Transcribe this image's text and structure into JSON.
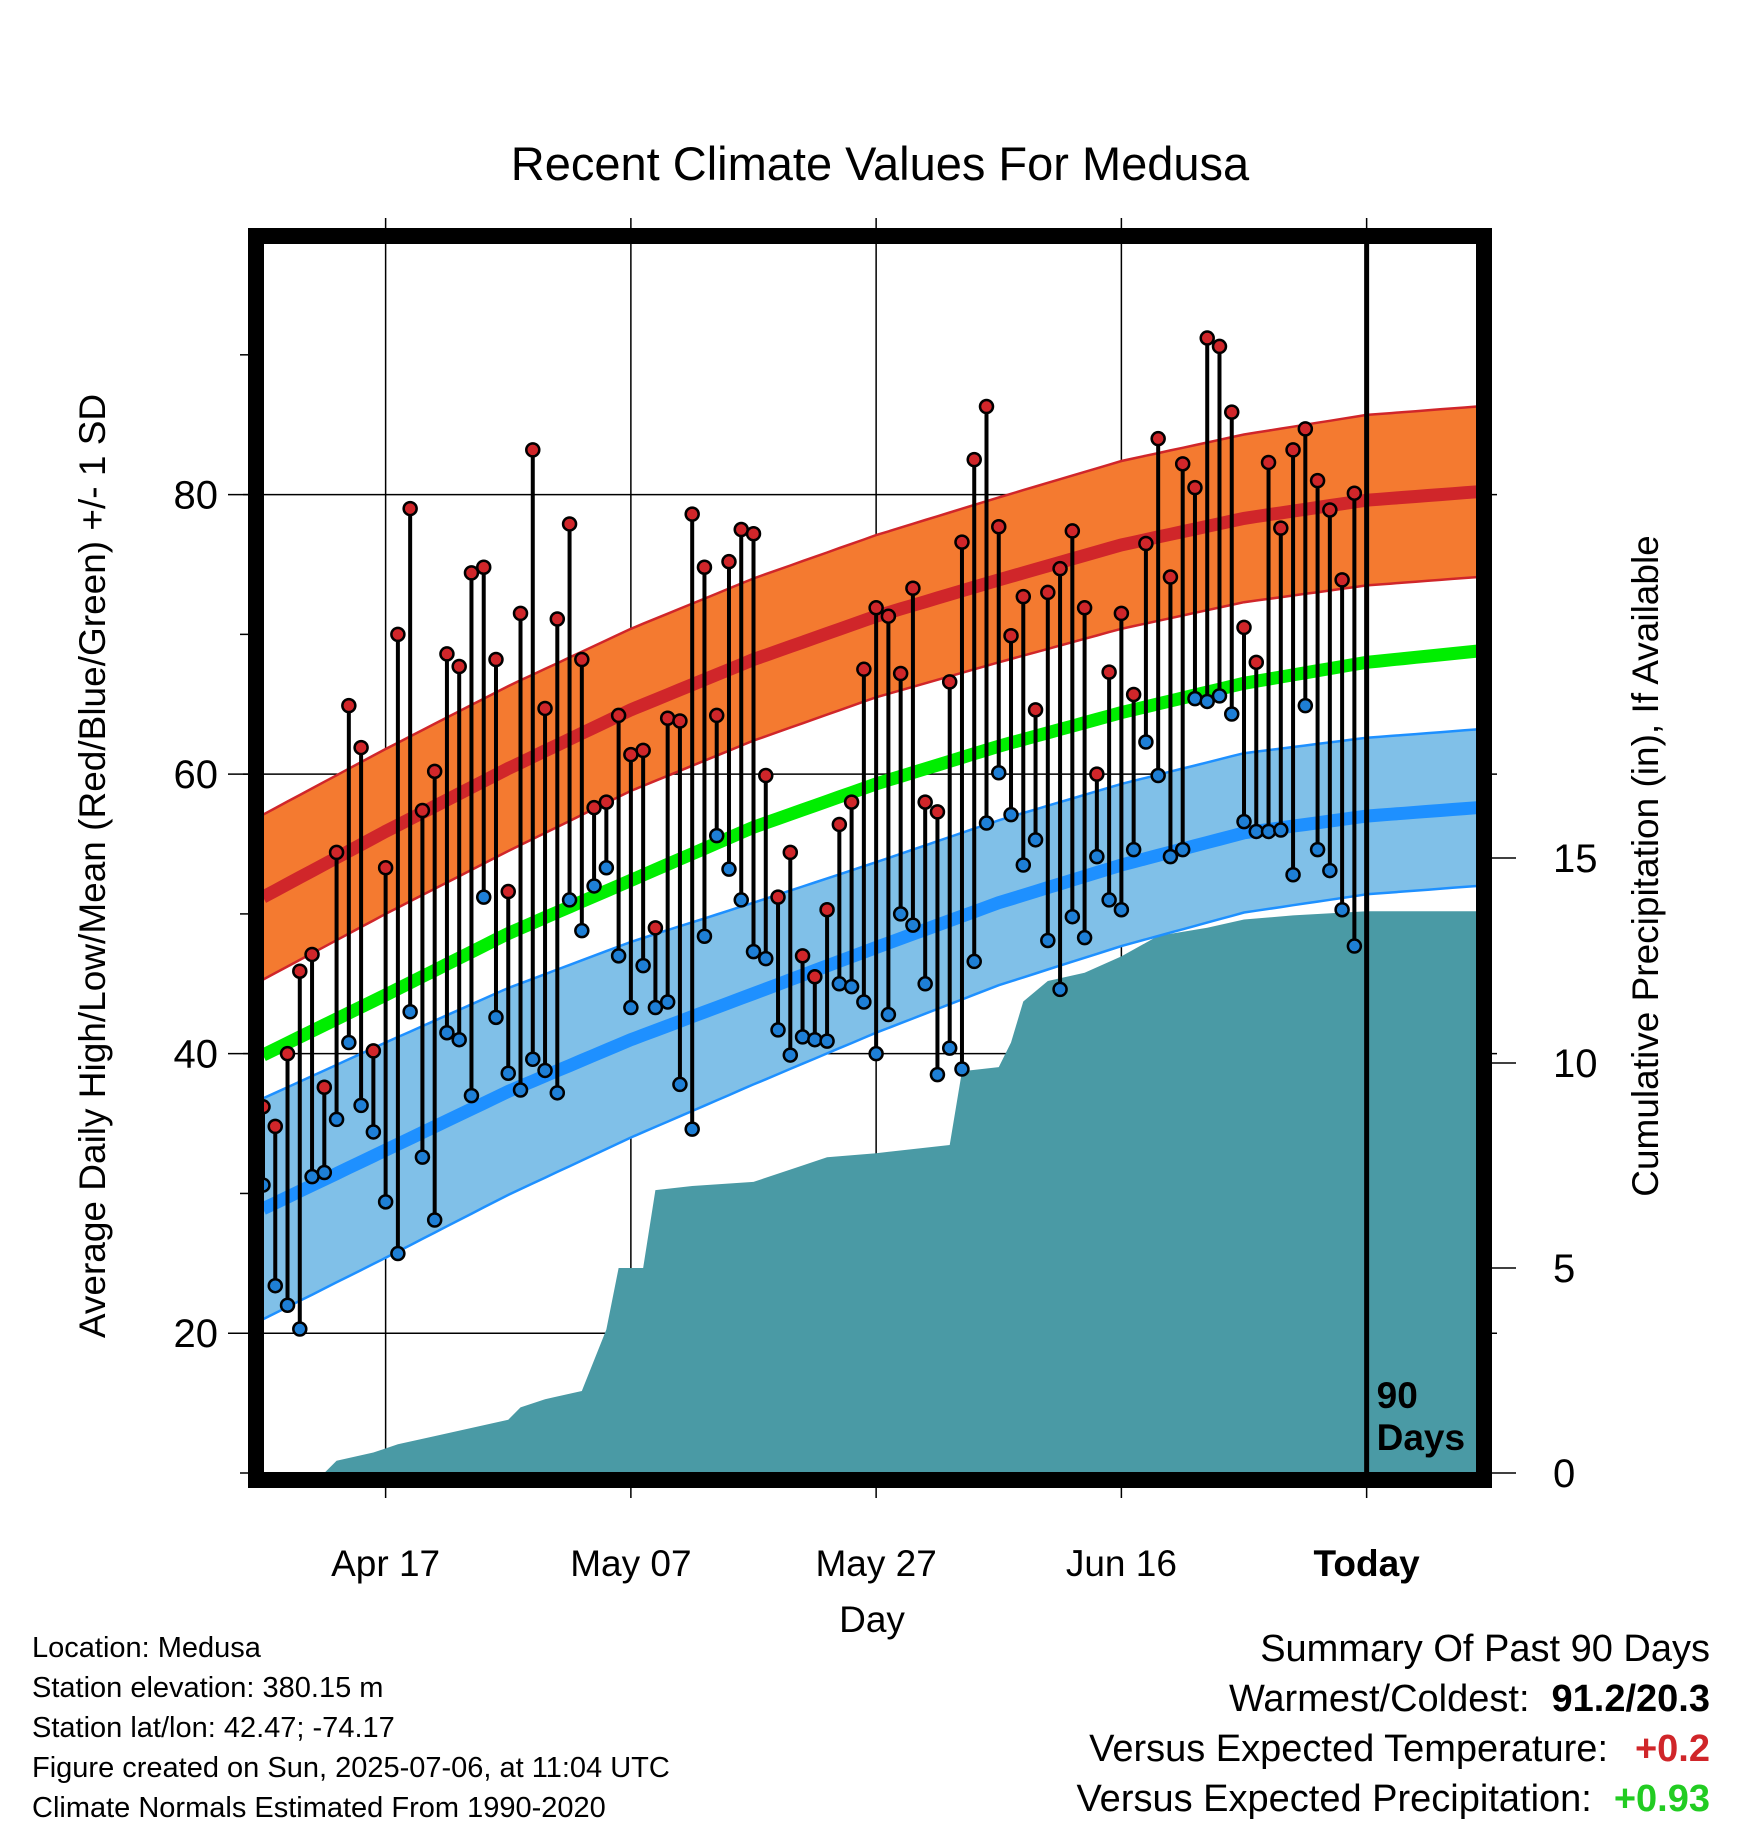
{
  "chart_data": {
    "type": "line",
    "title": "Recent Climate Values For Medusa",
    "xlabel": "Day",
    "ylabel": "Average Daily High/Low/Mean (Red/Blue/Green) +/- 1 SD",
    "y2label": "Cumulative Precipitation (in), If Available",
    "x_start": "2025-04-07",
    "x_end": "2025-07-15",
    "today": "2025-07-06",
    "xticks": [
      {
        "date": "2025-04-17",
        "label": "Apr 17"
      },
      {
        "date": "2025-05-07",
        "label": "May 07"
      },
      {
        "date": "2025-05-27",
        "label": "May 27"
      },
      {
        "date": "2025-06-16",
        "label": "Jun 16"
      },
      {
        "date": "2025-07-06",
        "label": "Today"
      }
    ],
    "ylim": [
      10,
      98
    ],
    "yticks": [
      20,
      40,
      60,
      80
    ],
    "y2lim": [
      0,
      30
    ],
    "y2ticks": [
      0,
      5,
      10,
      15
    ],
    "today_label": [
      "90",
      "Days"
    ],
    "grid": true,
    "normals": {
      "dates": [
        "2025-04-07",
        "2025-04-17",
        "2025-04-27",
        "2025-05-07",
        "2025-05-17",
        "2025-05-27",
        "2025-06-06",
        "2025-06-16",
        "2025-06-26",
        "2025-07-06",
        "2025-07-15"
      ],
      "high_mean": [
        51.2,
        55.9,
        60.4,
        64.6,
        68.2,
        71.3,
        73.9,
        76.4,
        78.3,
        79.6,
        80.2
      ],
      "high_sd": [
        5.9,
        5.9,
        5.9,
        5.8,
        5.8,
        5.8,
        5.9,
        6.0,
        6.0,
        6.1,
        6.1
      ],
      "mean": [
        39.9,
        44.2,
        48.6,
        52.4,
        56.2,
        59.3,
        62.0,
        64.4,
        66.5,
        68.0,
        68.8
      ],
      "low_mean": [
        28.9,
        33.1,
        37.3,
        41.0,
        44.3,
        47.6,
        50.8,
        53.5,
        55.8,
        57.0,
        57.6
      ],
      "low_sd": [
        7.9,
        7.7,
        7.4,
        7.0,
        6.5,
        6.1,
        5.9,
        5.8,
        5.7,
        5.6,
        5.6
      ]
    },
    "observed": {
      "start_date": "2025-04-07",
      "high": [
        36.2,
        34.8,
        40.0,
        45.9,
        47.1,
        37.6,
        54.4,
        64.9,
        61.9,
        40.2,
        53.3,
        70.0,
        79.0,
        57.4,
        60.2,
        68.6,
        67.7,
        74.4,
        74.8,
        68.2,
        51.6,
        71.5,
        83.2,
        64.7,
        71.1,
        77.9,
        68.2,
        57.6,
        58.0,
        64.2,
        61.4,
        61.7,
        49.0,
        64.0,
        63.8,
        78.6,
        74.8,
        64.2,
        75.2,
        77.5,
        77.2,
        59.9,
        51.2,
        54.4,
        47.0,
        45.5,
        50.3,
        56.4,
        58.0,
        67.5,
        71.9,
        71.3,
        67.2,
        73.3,
        58.0,
        57.3,
        66.6,
        76.6,
        82.5,
        86.3,
        77.7,
        69.9,
        72.7,
        64.6,
        73.0,
        74.7,
        77.4,
        71.9,
        60.0,
        67.3,
        71.5,
        65.7,
        76.5,
        84.0,
        74.1,
        82.2,
        80.5,
        91.2,
        90.6,
        85.9,
        70.5,
        68.0,
        82.3,
        77.6,
        83.2,
        84.7,
        81.0,
        78.9,
        73.9,
        80.1
      ],
      "low": [
        30.6,
        23.4,
        22.0,
        20.3,
        31.2,
        31.5,
        35.3,
        40.8,
        36.3,
        34.4,
        29.4,
        25.7,
        43.0,
        32.6,
        28.1,
        41.5,
        41.0,
        37.0,
        51.2,
        42.6,
        38.6,
        37.4,
        39.6,
        38.8,
        37.2,
        51.0,
        48.8,
        52.0,
        53.3,
        47.0,
        43.3,
        46.3,
        43.3,
        43.7,
        37.8,
        34.6,
        48.4,
        55.6,
        53.2,
        51.0,
        47.3,
        46.8,
        41.7,
        39.9,
        41.2,
        41.0,
        40.9,
        45.0,
        44.8,
        43.7,
        40.0,
        42.8,
        50.0,
        49.2,
        45.0,
        38.5,
        40.4,
        38.9,
        46.6,
        56.5,
        60.1,
        57.1,
        53.5,
        55.3,
        48.1,
        44.6,
        49.8,
        48.3,
        54.1,
        51.0,
        50.3,
        54.6,
        62.3,
        59.9,
        54.1,
        54.6,
        65.4,
        65.2,
        65.6,
        64.3,
        56.6,
        55.9,
        55.9,
        56.0,
        52.8,
        64.9,
        54.6,
        53.1,
        50.3,
        47.7
      ]
    },
    "precip": {
      "dates": [
        "2025-04-07",
        "2025-04-12",
        "2025-04-13",
        "2025-04-16",
        "2025-04-18",
        "2025-04-21",
        "2025-04-27",
        "2025-04-28",
        "2025-04-30",
        "2025-05-03",
        "2025-05-05",
        "2025-05-06",
        "2025-05-08",
        "2025-05-09",
        "2025-05-12",
        "2025-05-17",
        "2025-05-21",
        "2025-05-23",
        "2025-05-27",
        "2025-06-02",
        "2025-06-03",
        "2025-06-06",
        "2025-06-07",
        "2025-06-08",
        "2025-06-10",
        "2025-06-13",
        "2025-06-16",
        "2025-06-19",
        "2025-06-23",
        "2025-06-26",
        "2025-06-30",
        "2025-07-06",
        "2025-07-15"
      ],
      "values": [
        0.0,
        0.0,
        0.3,
        0.5,
        0.7,
        0.9,
        1.3,
        1.6,
        1.8,
        2.0,
        3.5,
        5.0,
        5.0,
        6.9,
        7.0,
        7.1,
        7.5,
        7.7,
        7.8,
        8.0,
        9.8,
        9.9,
        10.5,
        11.5,
        12.0,
        12.2,
        12.6,
        13.1,
        13.3,
        13.5,
        13.6,
        13.7,
        13.7
      ]
    },
    "colors": {
      "high_band": "#f47a30",
      "high_line": "#d0262a",
      "mean_line": "#00ee00",
      "low_band": "#80c0e8",
      "low_line": "#1e90ff",
      "precip": "#4a9aa5",
      "high_dot": "#d0262a",
      "low_dot": "#1e7fd6"
    }
  },
  "info": {
    "location": "Location: Medusa",
    "elevation": "Station elevation: 380.15 m",
    "latlon": "Station lat/lon: 42.47; -74.17",
    "created": "Figure created on Sun, 2025-07-06, at 11:04 UTC",
    "normals": "Climate Normals Estimated From 1990-2020"
  },
  "summary": {
    "title": "Summary Of Past 90 Days",
    "warmest_label": "Warmest/Coldest:",
    "warmest_value": "91.2/20.3",
    "temp_label": "Versus Expected Temperature:",
    "temp_value": "+0.2",
    "temp_color": "#d0262a",
    "precip_label": "Versus Expected Precipitation:",
    "precip_value": "+0.93",
    "precip_color": "#22cc22"
  }
}
